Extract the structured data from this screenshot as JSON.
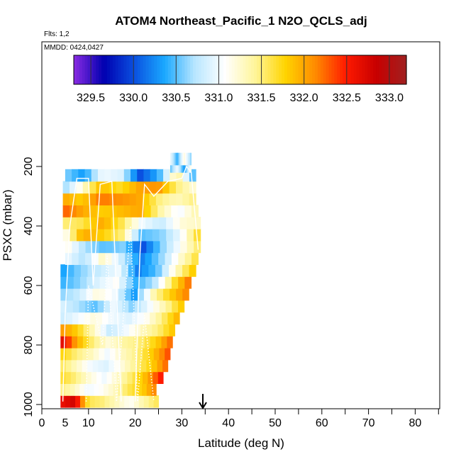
{
  "chart_data": {
    "type": "heatmap",
    "title": "ATOM4 Northeast_Pacific_1 N2O_QCLS_adj",
    "flights_label": "Flts: 1,2",
    "date_label": "MMDD: 0424,0427",
    "xlabel": "Latitude (deg N)",
    "ylabel": "PSXC (mbar)",
    "xlim": [
      0,
      85
    ],
    "ylim": [
      1010,
      0
    ],
    "x_ticks": [
      0,
      5,
      10,
      20,
      30,
      40,
      50,
      60,
      70,
      80
    ],
    "y_ticks": [
      200,
      400,
      600,
      800,
      1000
    ],
    "colorbar": {
      "range": [
        329.3,
        333.2
      ],
      "tick_values": [
        329.5,
        330.0,
        330.5,
        331.0,
        331.5,
        332.0,
        332.5,
        333.0
      ],
      "tick_labels": [
        "329.5",
        "330.0",
        "330.5",
        "331.0",
        "331.5",
        "332.0",
        "332.5",
        "333.0"
      ],
      "colors": [
        "#8a2be2",
        "#0000b0",
        "#0a50e0",
        "#1aa8ff",
        "#b8e6ff",
        "#ffffff",
        "#fff59a",
        "#ffd400",
        "#ff8a00",
        "#ff1a00",
        "#c80000",
        "#a02020"
      ]
    },
    "marker": {
      "x": 34.5,
      "label": "arrow"
    },
    "layers": [
      {
        "p": 990,
        "x0": 4,
        "x1": 25,
        "v": [
          332.6,
          332.8,
          331.6,
          331.5,
          331.3,
          331.1,
          331.4,
          331.6
        ]
      },
      {
        "p": 950,
        "x0": 4,
        "x1": 24.5,
        "v": [
          331.5,
          331.3,
          331.0,
          331.1,
          331.3,
          331.6,
          331.8,
          332.2
        ]
      },
      {
        "p": 910,
        "x0": 4,
        "x1": 26,
        "v": [
          331.7,
          331.5,
          331.2,
          331.0,
          331.3,
          331.6,
          332.0,
          332.6
        ]
      },
      {
        "p": 870,
        "x0": 4,
        "x1": 27,
        "v": [
          331.6,
          331.3,
          331.0,
          330.9,
          331.2,
          331.5,
          331.8,
          332.3
        ]
      },
      {
        "p": 830,
        "x0": 4,
        "x1": 27.5,
        "v": [
          331.8,
          331.5,
          331.3,
          331.0,
          331.3,
          331.5,
          331.9,
          332.4
        ]
      },
      {
        "p": 790,
        "x0": 4,
        "x1": 28,
        "v": [
          332.8,
          332.0,
          331.5,
          331.2,
          331.4,
          331.5,
          331.8,
          332.3
        ]
      },
      {
        "p": 750,
        "x0": 4,
        "x1": 28.5,
        "v": [
          332.1,
          331.8,
          331.3,
          330.8,
          331.0,
          331.3,
          331.5,
          331.9
        ]
      },
      {
        "p": 710,
        "x0": 4,
        "x1": 29.5,
        "v": [
          330.8,
          331.0,
          331.2,
          331.0,
          330.9,
          331.1,
          331.5,
          332.0
        ]
      },
      {
        "p": 670,
        "x0": 4,
        "x1": 30.5,
        "v": [
          330.9,
          330.7,
          330.5,
          331.0,
          330.6,
          331.0,
          331.4,
          331.9
        ]
      },
      {
        "p": 630,
        "x0": 4,
        "x1": 31.5,
        "v": [
          330.6,
          330.8,
          331.2,
          331.0,
          330.3,
          331.3,
          331.8,
          332.2
        ]
      },
      {
        "p": 590,
        "x0": 4,
        "x1": 32,
        "v": [
          330.4,
          330.6,
          330.9,
          331.1,
          330.4,
          330.7,
          331.6,
          332.3
        ]
      },
      {
        "p": 550,
        "x0": 4,
        "x1": 33,
        "v": [
          330.3,
          330.6,
          330.8,
          331.0,
          330.2,
          330.5,
          331.3,
          331.9
        ]
      },
      {
        "p": 510,
        "x0": 5,
        "x1": 33.5,
        "v": [
          331.0,
          330.7,
          331.3,
          330.8,
          330.2,
          330.6,
          331.2,
          331.7
        ]
      },
      {
        "p": 470,
        "x0": 5,
        "x1": 34,
        "v": [
          331.2,
          330.7,
          330.5,
          330.6,
          330.0,
          330.6,
          331.1,
          331.6
        ]
      },
      {
        "p": 430,
        "x0": 4.5,
        "x1": 34,
        "v": [
          331.0,
          332.0,
          331.8,
          331.5,
          330.5,
          330.6,
          331.0,
          331.8
        ]
      },
      {
        "p": 390,
        "x0": 4.5,
        "x1": 34,
        "v": [
          331.5,
          331.6,
          332.0,
          331.6,
          331.0,
          330.8,
          331.2,
          331.3
        ]
      },
      {
        "p": 350,
        "x0": 4.5,
        "x1": 33.5,
        "v": [
          332.3,
          332.0,
          331.8,
          331.9,
          332.0,
          331.4,
          331.0,
          331.4
        ]
      },
      {
        "p": 310,
        "x0": 4.5,
        "x1": 33,
        "v": [
          332.0,
          331.8,
          332.2,
          332.1,
          332.0,
          331.5,
          331.3,
          331.5
        ]
      },
      {
        "p": 270,
        "x0": 4.5,
        "x1": 33,
        "v": [
          330.6,
          331.2,
          331.9,
          331.7,
          332.0,
          332.1,
          331.5,
          331.2
        ]
      },
      {
        "p": 230,
        "x0": 5,
        "x1": 33,
        "v": [
          330.6,
          330.3,
          331.0,
          330.9,
          330.0,
          330.4,
          331.5,
          330.3
        ]
      },
      {
        "p": 200,
        "x0": 27.5,
        "x1": 32,
        "v": [
          330.5,
          331.0,
          330.3,
          331.2
        ]
      },
      {
        "p": 175,
        "x0": 27.5,
        "x1": 32,
        "v": [
          331.0,
          330.4,
          331.2,
          330.6
        ]
      }
    ],
    "flight_tracks": [
      {
        "style": "solid",
        "points": [
          [
            4.5,
            990
          ],
          [
            5,
            700
          ],
          [
            6,
            400
          ],
          [
            7.5,
            240
          ],
          [
            10,
            240
          ],
          [
            11,
            600
          ],
          [
            12.5,
            260
          ],
          [
            15,
            250
          ],
          [
            17,
            990
          ]
        ]
      },
      {
        "style": "solid",
        "points": [
          [
            20,
            990
          ],
          [
            21,
            500
          ],
          [
            22,
            260
          ],
          [
            24,
            300
          ],
          [
            27,
            250
          ],
          [
            30,
            240
          ],
          [
            31,
            200
          ],
          [
            32,
            220
          ],
          [
            33.5,
            480
          ]
        ]
      },
      {
        "style": "dotted",
        "points": [
          [
            9.5,
            990
          ],
          [
            10,
            600
          ],
          [
            13,
            800
          ],
          [
            14,
            500
          ],
          [
            16,
            990
          ],
          [
            17.5,
            700
          ],
          [
            19,
            400
          ],
          [
            20.5,
            990
          ],
          [
            22,
            700
          ],
          [
            24,
            990
          ]
        ]
      }
    ]
  }
}
